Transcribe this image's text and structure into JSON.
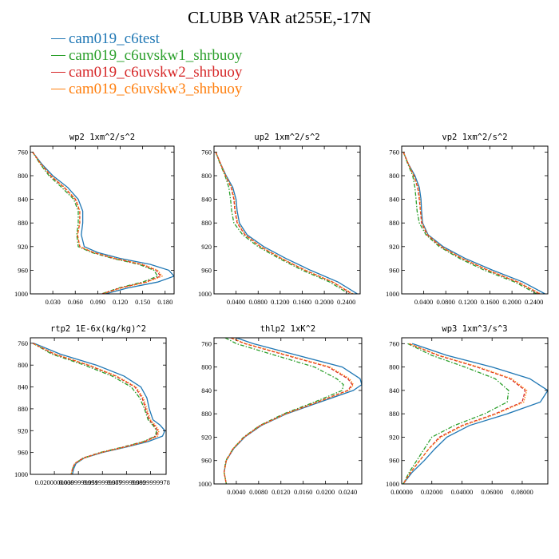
{
  "title": "CLUBB VAR at255E,-17N",
  "legend": [
    {
      "name": "cam019_c6test",
      "color": "#1f77b4"
    },
    {
      "name": "cam019_c6uvskw1_shrbuoy",
      "color": "#2ca02c"
    },
    {
      "name": "cam019_c6uvskw2_shrbuoy",
      "color": "#d62728"
    },
    {
      "name": "cam019_c6uvskw3_shrbuoy",
      "color": "#ff7f0e"
    }
  ],
  "chart_data": [
    {
      "type": "line",
      "title": "wp2  1xm^2/s^2",
      "ylim": [
        1000,
        750
      ],
      "yticks": [
        "760",
        "800",
        "840",
        "880",
        "920",
        "960",
        "1000"
      ],
      "yticks_values": [
        760,
        800,
        840,
        880,
        920,
        960,
        1000
      ],
      "xlim": [
        0.0,
        0.192
      ],
      "xticks": [
        "0.030",
        "0.060",
        "0.090",
        "0.120",
        "0.150",
        "0.180"
      ],
      "xticks_values": [
        0.03,
        0.06,
        0.09,
        0.12,
        0.15,
        0.18
      ],
      "y": [
        760,
        780,
        800,
        820,
        840,
        860,
        880,
        900,
        920,
        930,
        940,
        950,
        960,
        970,
        980,
        990,
        1000
      ],
      "series": [
        {
          "color": "#1f77b4",
          "dash": "solid",
          "x": [
            0.003,
            0.015,
            0.03,
            0.05,
            0.064,
            0.07,
            0.07,
            0.068,
            0.072,
            0.09,
            0.12,
            0.16,
            0.185,
            0.192,
            0.17,
            0.13,
            0.1
          ]
        },
        {
          "color": "#2ca02c",
          "dash": "dashdot",
          "x": [
            0.003,
            0.013,
            0.025,
            0.042,
            0.058,
            0.064,
            0.064,
            0.062,
            0.064,
            0.082,
            0.11,
            0.145,
            0.165,
            0.17,
            0.15,
            0.118,
            0.095
          ]
        },
        {
          "color": "#d62728",
          "dash": "dashed",
          "x": [
            0.003,
            0.014,
            0.027,
            0.045,
            0.06,
            0.066,
            0.066,
            0.063,
            0.066,
            0.084,
            0.112,
            0.148,
            0.168,
            0.174,
            0.154,
            0.12,
            0.096
          ]
        },
        {
          "color": "#ff7f0e",
          "dash": "dotted",
          "x": [
            0.003,
            0.014,
            0.028,
            0.046,
            0.061,
            0.066,
            0.066,
            0.063,
            0.066,
            0.085,
            0.114,
            0.15,
            0.17,
            0.176,
            0.156,
            0.122,
            0.097
          ]
        }
      ]
    },
    {
      "type": "line",
      "title": "up2  1xm^2/s^2",
      "ylim": [
        1000,
        750
      ],
      "yticks": [
        "760",
        "800",
        "840",
        "880",
        "920",
        "960",
        "1000"
      ],
      "yticks_values": [
        760,
        800,
        840,
        880,
        920,
        960,
        1000
      ],
      "xlim": [
        0.0,
        0.265
      ],
      "xticks": [
        "0.0400",
        "0.0800",
        "0.1200",
        "0.1600",
        "0.2000",
        "0.2400"
      ],
      "xticks_values": [
        0.04,
        0.08,
        0.12,
        0.16,
        0.2,
        0.24
      ],
      "y": [
        760,
        780,
        800,
        820,
        840,
        860,
        880,
        900,
        920,
        940,
        960,
        980,
        1000
      ],
      "series": [
        {
          "color": "#1f77b4",
          "dash": "solid",
          "x": [
            0.003,
            0.012,
            0.022,
            0.034,
            0.04,
            0.042,
            0.046,
            0.06,
            0.09,
            0.13,
            0.175,
            0.225,
            0.26
          ]
        },
        {
          "color": "#2ca02c",
          "dash": "dashdot",
          "x": [
            0.003,
            0.011,
            0.02,
            0.027,
            0.03,
            0.032,
            0.036,
            0.052,
            0.08,
            0.118,
            0.16,
            0.21,
            0.245
          ]
        },
        {
          "color": "#d62728",
          "dash": "dashed",
          "x": [
            0.003,
            0.012,
            0.021,
            0.031,
            0.036,
            0.038,
            0.042,
            0.056,
            0.084,
            0.122,
            0.165,
            0.215,
            0.25
          ]
        },
        {
          "color": "#ff7f0e",
          "dash": "dotted",
          "x": [
            0.003,
            0.012,
            0.021,
            0.032,
            0.037,
            0.039,
            0.043,
            0.057,
            0.085,
            0.123,
            0.166,
            0.216,
            0.252
          ]
        }
      ]
    },
    {
      "type": "line",
      "title": "vp2  1xm^2/s^2",
      "ylim": [
        1000,
        750
      ],
      "yticks": [
        "760",
        "800",
        "840",
        "880",
        "920",
        "960",
        "1000"
      ],
      "yticks_values": [
        760,
        800,
        840,
        880,
        920,
        960,
        1000
      ],
      "xlim": [
        0.0,
        0.265
      ],
      "xticks": [
        "0.0400",
        "0.0800",
        "0.1200",
        "0.1600",
        "0.2000",
        "0.2400"
      ],
      "xticks_values": [
        0.04,
        0.08,
        0.12,
        0.16,
        0.2,
        0.24
      ],
      "y": [
        760,
        780,
        800,
        820,
        840,
        860,
        880,
        900,
        920,
        940,
        960,
        980,
        1000
      ],
      "series": [
        {
          "color": "#1f77b4",
          "dash": "solid",
          "x": [
            0.003,
            0.012,
            0.024,
            0.032,
            0.035,
            0.036,
            0.038,
            0.048,
            0.075,
            0.115,
            0.165,
            0.22,
            0.26
          ]
        },
        {
          "color": "#2ca02c",
          "dash": "dashdot",
          "x": [
            0.003,
            0.011,
            0.02,
            0.024,
            0.026,
            0.028,
            0.032,
            0.044,
            0.068,
            0.105,
            0.15,
            0.205,
            0.245
          ]
        },
        {
          "color": "#d62728",
          "dash": "dashed",
          "x": [
            0.003,
            0.012,
            0.022,
            0.029,
            0.032,
            0.034,
            0.036,
            0.046,
            0.071,
            0.109,
            0.156,
            0.21,
            0.25
          ]
        },
        {
          "color": "#ff7f0e",
          "dash": "dotted",
          "x": [
            0.003,
            0.012,
            0.022,
            0.03,
            0.033,
            0.034,
            0.037,
            0.047,
            0.072,
            0.11,
            0.158,
            0.212,
            0.252
          ]
        }
      ]
    },
    {
      "type": "line",
      "title": "rtp2  1E-6x(kg/kg)^2",
      "ylim": [
        1000,
        750
      ],
      "yticks": [
        "760",
        "800",
        "840",
        "880",
        "920",
        "960",
        "1000"
      ],
      "yticks_values": [
        760,
        800,
        840,
        880,
        920,
        960,
        1000
      ],
      "xlim": [
        0.0,
        0.113
      ],
      "xticks": [
        "0.0200000000",
        "0.0399999991",
        "0.0599999987",
        "0.0799999982",
        "0.0999999978"
      ],
      "xticks_values": [
        0.02,
        0.04,
        0.06,
        0.08,
        0.1
      ],
      "y": [
        760,
        780,
        800,
        820,
        840,
        860,
        880,
        900,
        910,
        920,
        930,
        940,
        950,
        960,
        970,
        980,
        990,
        1000
      ],
      "series": [
        {
          "color": "#1f77b4",
          "dash": "solid",
          "x": [
            0.003,
            0.025,
            0.055,
            0.078,
            0.092,
            0.097,
            0.099,
            0.102,
            0.108,
            0.112,
            0.11,
            0.098,
            0.08,
            0.06,
            0.045,
            0.038,
            0.036,
            0.035
          ]
        },
        {
          "color": "#2ca02c",
          "dash": "dashdot",
          "x": [
            0.002,
            0.018,
            0.045,
            0.068,
            0.084,
            0.091,
            0.095,
            0.098,
            0.102,
            0.105,
            0.104,
            0.094,
            0.077,
            0.058,
            0.044,
            0.037,
            0.035,
            0.034
          ]
        },
        {
          "color": "#d62728",
          "dash": "dashed",
          "x": [
            0.002,
            0.02,
            0.048,
            0.071,
            0.087,
            0.093,
            0.096,
            0.099,
            0.103,
            0.106,
            0.105,
            0.095,
            0.078,
            0.059,
            0.044,
            0.037,
            0.035,
            0.034
          ]
        },
        {
          "color": "#ff7f0e",
          "dash": "dotted",
          "x": [
            0.002,
            0.021,
            0.049,
            0.072,
            0.088,
            0.094,
            0.097,
            0.1,
            0.104,
            0.107,
            0.106,
            0.096,
            0.079,
            0.059,
            0.045,
            0.037,
            0.035,
            0.034
          ]
        }
      ]
    },
    {
      "type": "line",
      "title": "thlp2  1xK^2",
      "ylim": [
        1000,
        750
      ],
      "yticks": [
        "760",
        "800",
        "840",
        "880",
        "920",
        "960",
        "1000"
      ],
      "yticks_values": [
        760,
        800,
        840,
        880,
        920,
        960,
        1000
      ],
      "xlim": [
        0.0,
        0.0265
      ],
      "xticks": [
        "0.0040",
        "0.0080",
        "0.0120",
        "0.0160",
        "0.0200",
        "0.0240"
      ],
      "xticks_values": [
        0.004,
        0.008,
        0.012,
        0.016,
        0.02,
        0.024
      ],
      "y": [
        750,
        760,
        780,
        800,
        820,
        830,
        840,
        860,
        880,
        900,
        920,
        940,
        960,
        980,
        1000
      ],
      "series": [
        {
          "color": "#1f77b4",
          "dash": "solid",
          "x": [
            0.004,
            0.007,
            0.015,
            0.023,
            0.0262,
            0.0265,
            0.025,
            0.019,
            0.013,
            0.0085,
            0.0055,
            0.0035,
            0.0022,
            0.0018,
            0.0022
          ]
        },
        {
          "color": "#2ca02c",
          "dash": "dashdot",
          "x": [
            0.002,
            0.004,
            0.011,
            0.018,
            0.022,
            0.0232,
            0.023,
            0.018,
            0.0125,
            0.0082,
            0.0053,
            0.0034,
            0.0021,
            0.0018,
            0.0022
          ]
        },
        {
          "color": "#d62728",
          "dash": "dashed",
          "x": [
            0.003,
            0.0055,
            0.013,
            0.0205,
            0.024,
            0.0248,
            0.024,
            0.0185,
            0.0128,
            0.0083,
            0.0054,
            0.0034,
            0.0022,
            0.0018,
            0.0022
          ]
        },
        {
          "color": "#ff7f0e",
          "dash": "dotted",
          "x": [
            0.003,
            0.0057,
            0.0133,
            0.0208,
            0.0243,
            0.025,
            0.0242,
            0.0186,
            0.0129,
            0.0084,
            0.0054,
            0.0034,
            0.0022,
            0.0018,
            0.0022
          ]
        }
      ]
    },
    {
      "type": "line",
      "title": "wp3  1xm^3/s^3",
      "ylim": [
        1000,
        750
      ],
      "yticks": [
        "760",
        "800",
        "840",
        "880",
        "920",
        "960",
        "1000"
      ],
      "yticks_values": [
        760,
        800,
        840,
        880,
        920,
        960,
        1000
      ],
      "xlim": [
        0.0,
        0.097
      ],
      "xticks": [
        "0.00000",
        "0.02000",
        "0.04000",
        "0.06000",
        "0.08000"
      ],
      "xticks_values": [
        0.0,
        0.02,
        0.04,
        0.06,
        0.08
      ],
      "y": [
        760,
        780,
        800,
        820,
        840,
        860,
        880,
        900,
        920,
        940,
        960,
        980,
        1000
      ],
      "series": [
        {
          "color": "#1f77b4",
          "dash": "solid",
          "x": [
            0.007,
            0.03,
            0.06,
            0.085,
            0.097,
            0.092,
            0.07,
            0.045,
            0.03,
            0.022,
            0.015,
            0.007,
            0.001
          ]
        },
        {
          "color": "#2ca02c",
          "dash": "dashdot",
          "x": [
            0.004,
            0.02,
            0.042,
            0.062,
            0.071,
            0.07,
            0.055,
            0.035,
            0.02,
            0.015,
            0.01,
            0.005,
            0.001
          ]
        },
        {
          "color": "#d62728",
          "dash": "dashed",
          "x": [
            0.005,
            0.024,
            0.05,
            0.072,
            0.082,
            0.08,
            0.062,
            0.04,
            0.025,
            0.018,
            0.012,
            0.006,
            0.001
          ]
        },
        {
          "color": "#ff7f0e",
          "dash": "dotted",
          "x": [
            0.005,
            0.025,
            0.051,
            0.073,
            0.083,
            0.081,
            0.063,
            0.041,
            0.026,
            0.018,
            0.012,
            0.006,
            0.001
          ]
        }
      ]
    }
  ]
}
